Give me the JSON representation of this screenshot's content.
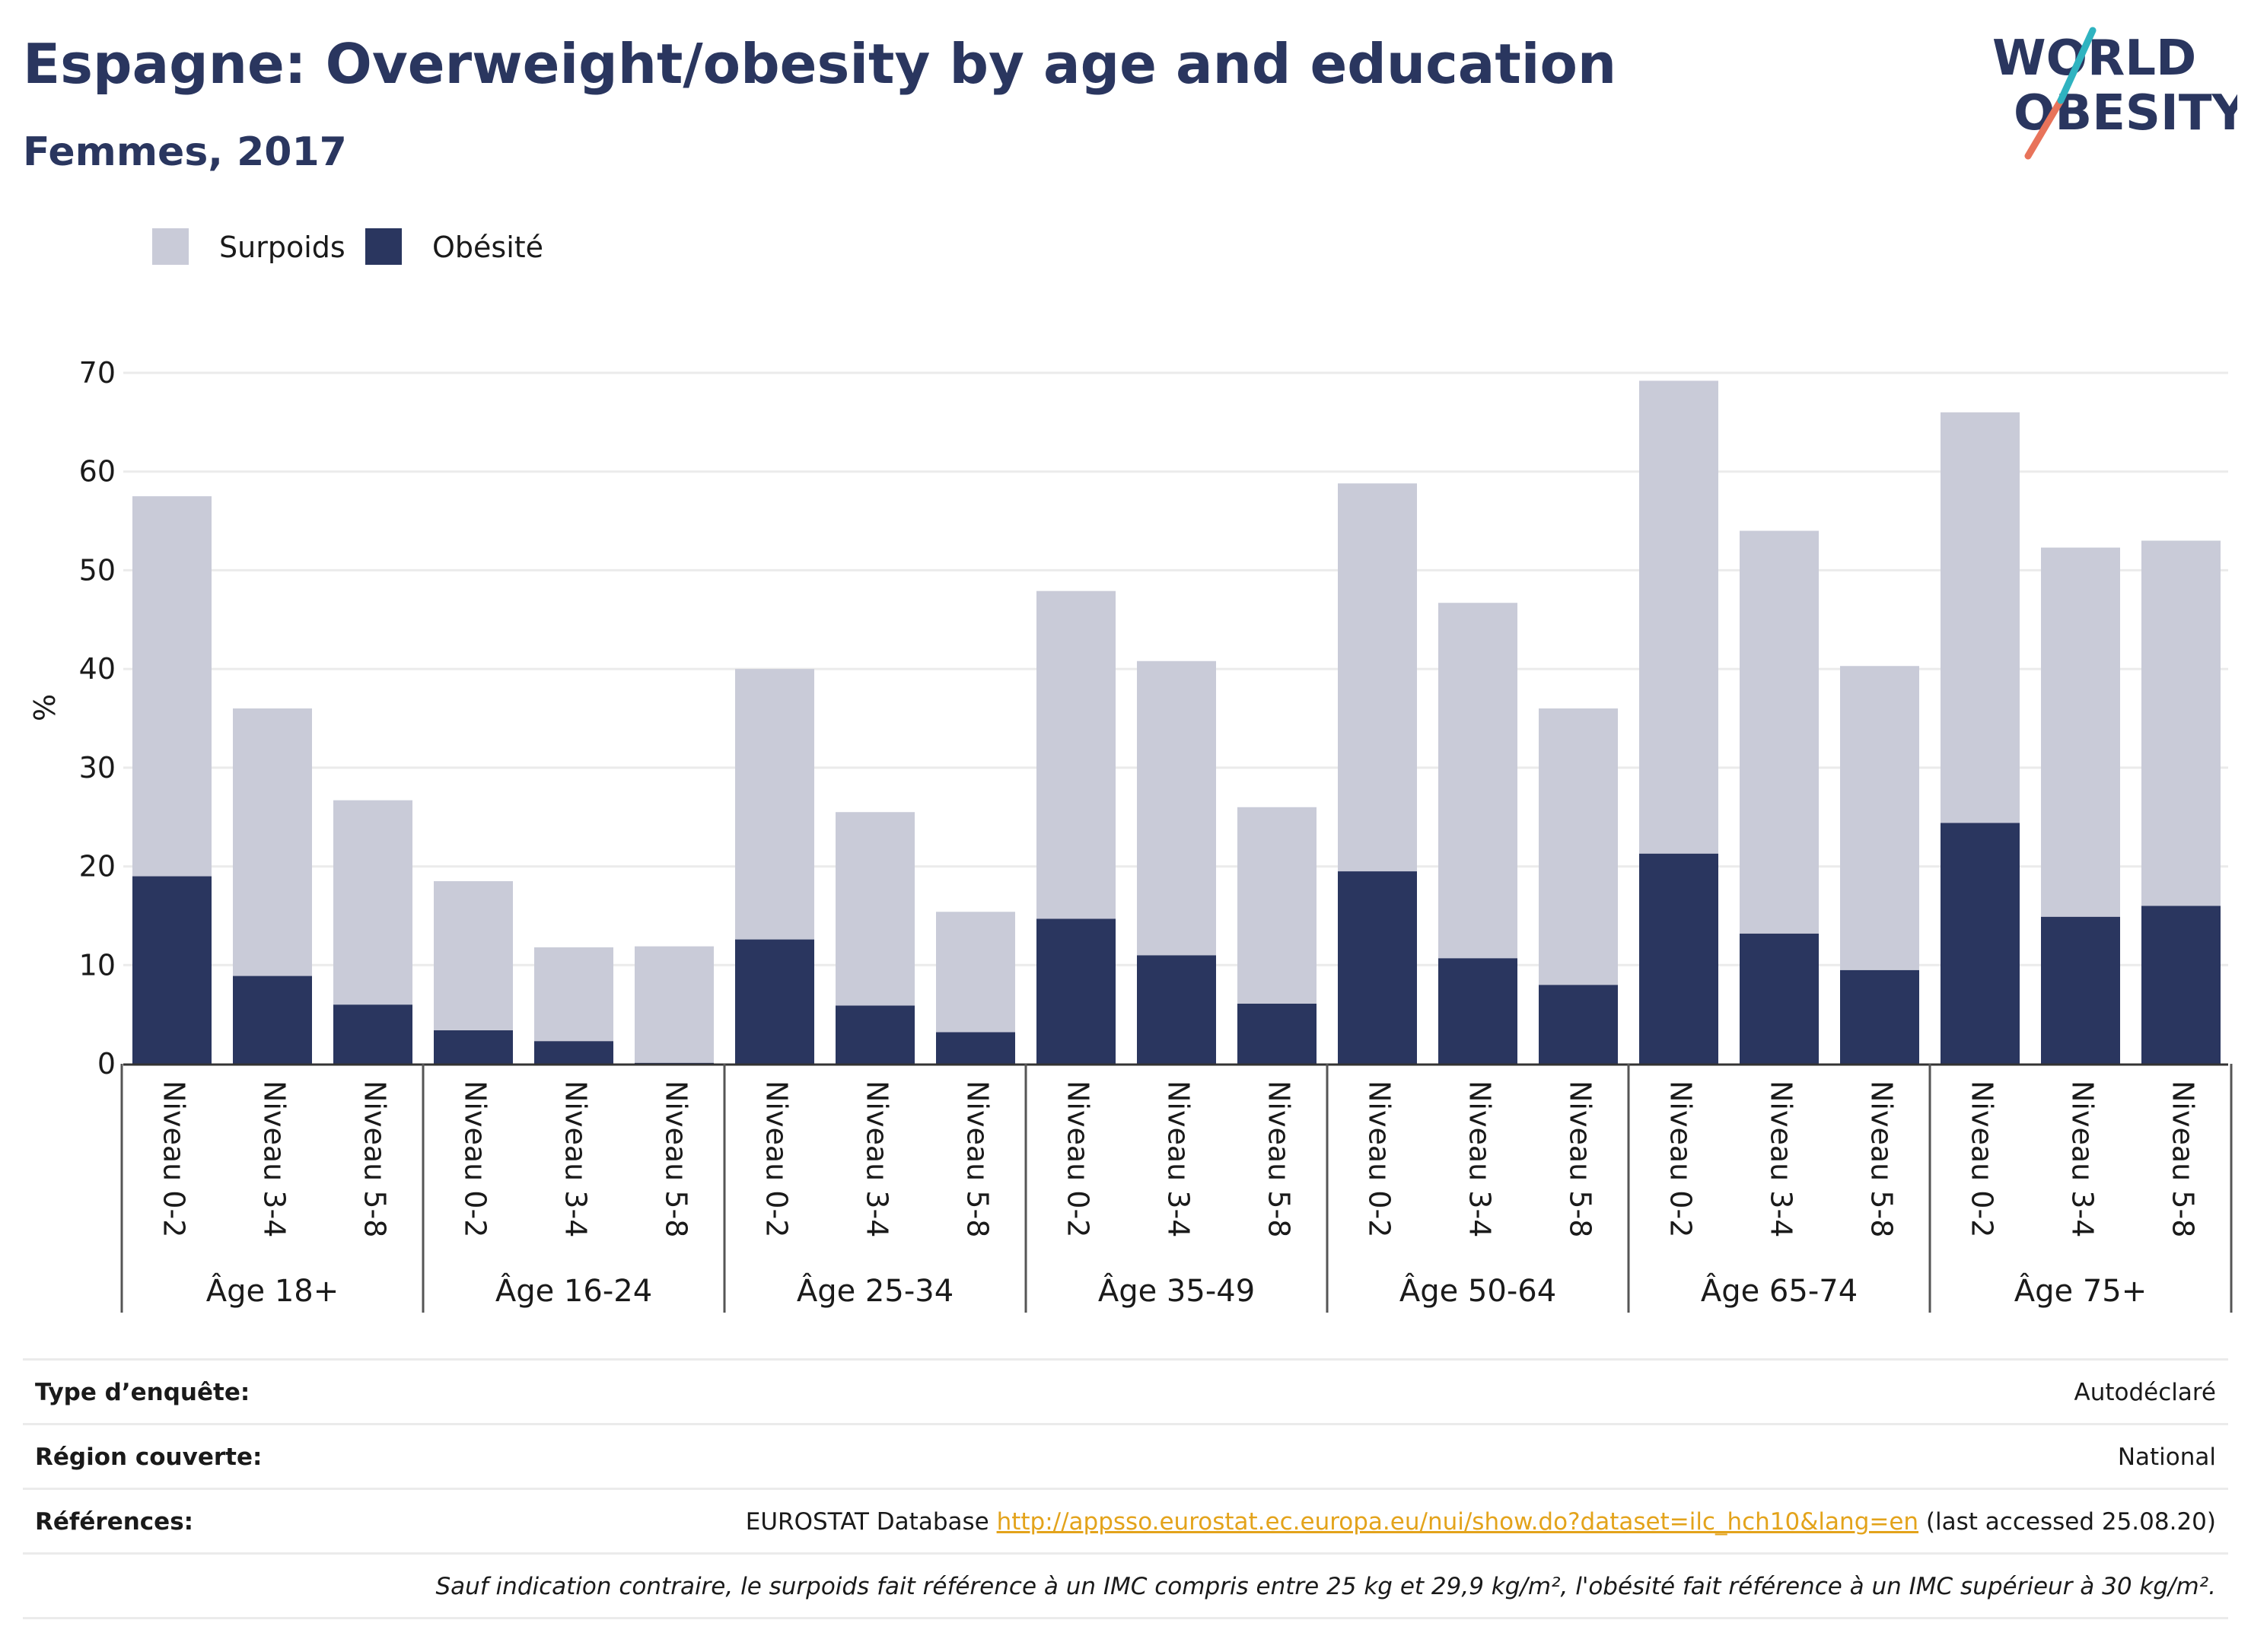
{
  "title": "Espagne: Overweight/obesity by age and education",
  "subtitle": "Femmes, 2017",
  "logo": {
    "line1": "WORLD",
    "line2": "OBESITY",
    "accent_teal": "#2fb3c0",
    "accent_coral": "#e8735a"
  },
  "colors": {
    "obesity": "#2a365f",
    "overweight": "#c9cbd8",
    "text": "#2a365f"
  },
  "chart_data": {
    "type": "bar",
    "stacked": true,
    "ylabel": "%",
    "ylim": [
      0,
      70
    ],
    "yticks": [
      0,
      10,
      20,
      30,
      40,
      50,
      60,
      70
    ],
    "grid": true,
    "legend_position": "top-left",
    "groups": [
      {
        "label": "Âge 18+",
        "categories": [
          "Niveau 0-2",
          "Niveau 3-4",
          "Niveau 5-8"
        ]
      },
      {
        "label": "Âge 16-24",
        "categories": [
          "Niveau 0-2",
          "Niveau 3-4",
          "Niveau 5-8"
        ]
      },
      {
        "label": "Âge 25-34",
        "categories": [
          "Niveau 0-2",
          "Niveau 3-4",
          "Niveau 5-8"
        ]
      },
      {
        "label": "Âge 35-49",
        "categories": [
          "Niveau 0-2",
          "Niveau 3-4",
          "Niveau 5-8"
        ]
      },
      {
        "label": "Âge 50-64",
        "categories": [
          "Niveau 0-2",
          "Niveau 3-4",
          "Niveau 5-8"
        ]
      },
      {
        "label": "Âge 65-74",
        "categories": [
          "Niveau 0-2",
          "Niveau 3-4",
          "Niveau 5-8"
        ]
      },
      {
        "label": "Âge 75+",
        "categories": [
          "Niveau 0-2",
          "Niveau 3-4",
          "Niveau 5-8"
        ]
      }
    ],
    "series": [
      {
        "name": "Obésité",
        "color": "#2a365f",
        "values": [
          19.0,
          8.9,
          6.0,
          3.4,
          2.3,
          0.1,
          12.6,
          5.9,
          3.2,
          14.7,
          11.0,
          6.1,
          19.5,
          10.7,
          8.0,
          21.3,
          13.2,
          9.5,
          24.4,
          14.9,
          16.0
        ]
      },
      {
        "name": "Surpoids",
        "color": "#c9cbd8",
        "values": [
          38.5,
          27.1,
          20.7,
          15.1,
          9.5,
          11.8,
          27.4,
          19.6,
          12.2,
          33.2,
          29.8,
          19.9,
          39.3,
          36.0,
          28.0,
          47.9,
          40.8,
          30.8,
          41.6,
          37.4,
          37.0
        ]
      }
    ]
  },
  "info": [
    {
      "label": "Type d’enquête:",
      "value": "Autodéclaré"
    },
    {
      "label": "Région couverte:",
      "value": "National"
    },
    {
      "label": "Références:",
      "value_prefix": "EUROSTAT Database",
      "link": "http://appsso.eurostat.ec.europa.eu/nui/show.do?dataset=ilc_hch10&lang=en",
      "value_suffix": "(last accessed 25.08.20)"
    },
    {
      "label": "",
      "value": "Sauf indication contraire, le surpoids fait référence à un IMC compris entre 25 kg et 29,9 kg/m², l'obésité fait référence à un IMC supérieur à 30 kg/m²."
    }
  ]
}
